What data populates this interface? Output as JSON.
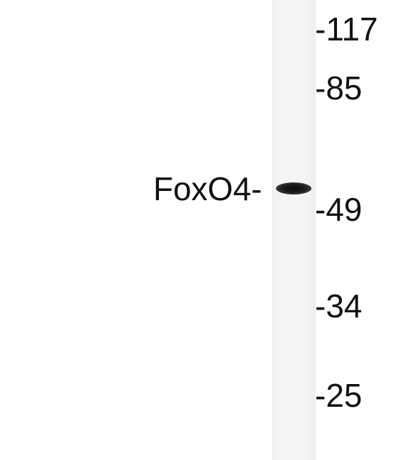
{
  "blot": {
    "band_label": "FoxO4-",
    "markers": [
      {
        "label": "-117"
      },
      {
        "label": "-85"
      },
      {
        "label": "-49"
      },
      {
        "label": "-34"
      },
      {
        "label": "-25"
      }
    ]
  }
}
